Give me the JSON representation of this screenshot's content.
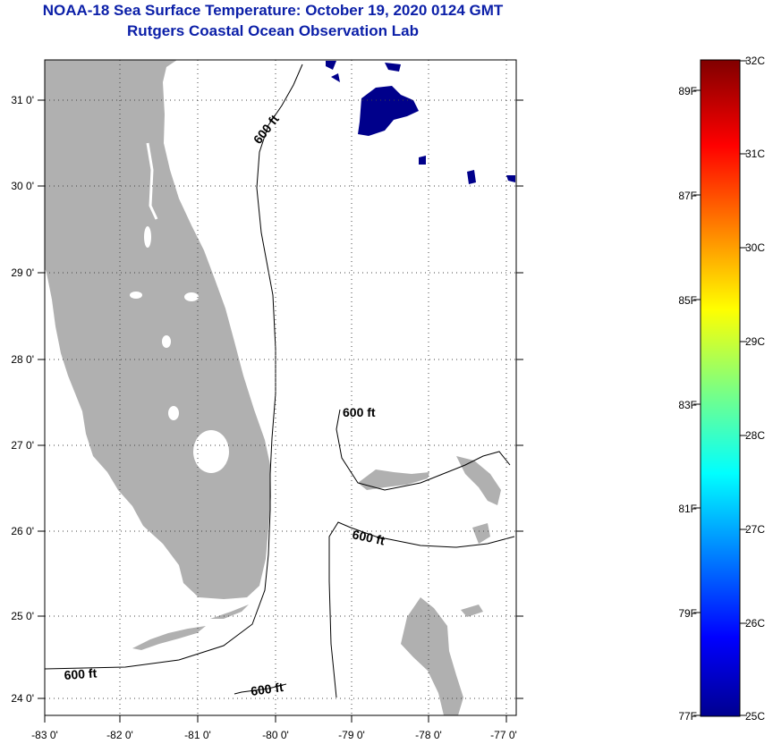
{
  "title": {
    "line1": "NOAA-18 Sea Surface Temperature:  October 19, 2020 0124 GMT",
    "line2": "Rutgers Coastal Ocean Observation Lab"
  },
  "colors": {
    "title": "#0b1fa8",
    "land": "#b0b0b0",
    "ocean": "#ffffff",
    "cloud_sst": "#00008b"
  },
  "map": {
    "lon_labels": [
      "-83 0'",
      "-82 0'",
      "-81 0'",
      "-80 0'",
      "-79 0'",
      "-78 0'",
      "-77 0'"
    ],
    "lat_labels": [
      "31 0'",
      "30 0'",
      "29 0'",
      "28 0'",
      "27 0'",
      "26 0'",
      "25 0'",
      "24 0'"
    ],
    "contour_labels": [
      "600 ft",
      "600 ft",
      "600 ft",
      "600 ft",
      "600 ft"
    ]
  },
  "colorbar": {
    "right_labels": [
      "32C",
      "31C",
      "30C",
      "29C",
      "28C",
      "27C",
      "26C",
      "25C"
    ],
    "left_labels": [
      "89F",
      "87F",
      "85F",
      "83F",
      "81F",
      "79F",
      "77F"
    ]
  }
}
